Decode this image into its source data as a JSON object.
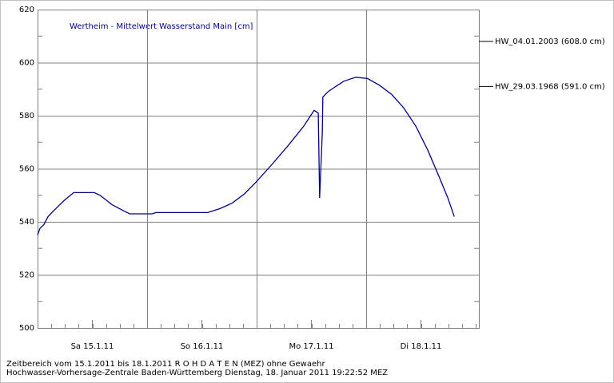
{
  "chart_data": {
    "type": "line",
    "title": "Wertheim - Mittelwert Wasserstand Main [cm]",
    "x": [
      0,
      0.5,
      1.4,
      2.3,
      4.0,
      5.8,
      7.9,
      12.4,
      13.7,
      16.3,
      19.0,
      20.2,
      25.1,
      25.9,
      37.3,
      40.0,
      42.6,
      45.3,
      47.9,
      51.3,
      54.8,
      58.3,
      60.6,
      61.5,
      61.8,
      62.4,
      62.5,
      63.6,
      65.3,
      67.1,
      69.7,
      72.3,
      74.9,
      77.6,
      80.2,
      82.9,
      85.5,
      88.1,
      89.9,
      91.3
    ],
    "series": [
      {
        "name": "Wasserstand",
        "color": "#00008b",
        "values": [
          535,
          537.5,
          539,
          542,
          545,
          548,
          551,
          551,
          550,
          546.5,
          544,
          543,
          543,
          543.5,
          543.5,
          545,
          547,
          550.5,
          555,
          561.5,
          568.5,
          576,
          582,
          581,
          549,
          574,
          587,
          589,
          591,
          593,
          594.5,
          594,
          591.5,
          588,
          583,
          576,
          567,
          556.5,
          549,
          542
        ]
      }
    ],
    "xlim": [
      0,
      96.7
    ],
    "xticks": [
      {
        "value": 12,
        "label": "Sa 15.1.11"
      },
      {
        "value": 36,
        "label": "So 16.1.11"
      },
      {
        "value": 60,
        "label": "Mo 17.1.11"
      },
      {
        "value": 84,
        "label": "Di 18.1.11"
      }
    ],
    "ylim": [
      500,
      620
    ],
    "yticks": [
      500,
      520,
      540,
      560,
      580,
      600,
      620
    ],
    "grid": true,
    "annotations": [
      {
        "value": 608,
        "label": "HW_04.01.2003 (608.0 cm)"
      },
      {
        "value": 591,
        "label": "HW_29.03.1968 (591.0 cm)"
      }
    ],
    "footer": [
      "Zeitbereich vom 15.1.2011  bis 18.1.2011      R O H D A T E N (MEZ) ohne Gewaehr",
      "Hochwasser-Vorhersage-Zentrale Baden-Württemberg Dienstag, 18. Januar 2011 19:22:52 MEZ"
    ]
  }
}
